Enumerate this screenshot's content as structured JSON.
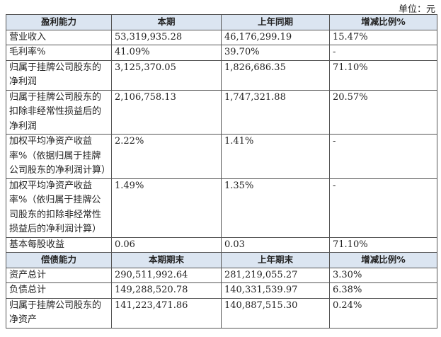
{
  "unit": "单位：元",
  "table": {
    "sections": [
      {
        "header": [
          "盈利能力",
          "本期",
          "上年同期",
          "增减比例%"
        ],
        "rows": [
          [
            "营业收入",
            "53,319,935.28",
            "46,176,299.19",
            "15.47%"
          ],
          [
            "毛利率%",
            "41.09%",
            "39.70%",
            "-"
          ],
          [
            "归属于挂牌公司股东的净利润",
            "3,125,370.05",
            "1,826,686.35",
            "71.10%"
          ],
          [
            "归属于挂牌公司股东的扣除非经常性损益后的净利润",
            "2,106,758.13",
            "1,747,321.88",
            "20.57%"
          ],
          [
            "加权平均净资产收益率%（依据归属于挂牌公司股东的净利润计算）",
            "2.22%",
            "1.41%",
            "-"
          ],
          [
            "加权平均净资产收益率%（依归属于挂牌公司股东的扣除非经常性损益后的净利润计算）",
            "1.49%",
            "1.35%",
            "-"
          ],
          [
            "基本每股收益",
            "0.06",
            "0.03",
            "71.10%"
          ]
        ]
      },
      {
        "header": [
          "偿债能力",
          "本期期末",
          "上年期末",
          "增减比例%"
        ],
        "rows": [
          [
            "资产总计",
            "290,511,992.64",
            "281,219,055.27",
            "3.30%"
          ],
          [
            "负债总计",
            "149,288,520.78",
            "140,331,539.97",
            "6.38%"
          ],
          [
            "归属于挂牌公司股东的净资产",
            "141,223,471.86",
            "140,887,515.30",
            "0.24%"
          ]
        ]
      }
    ]
  }
}
